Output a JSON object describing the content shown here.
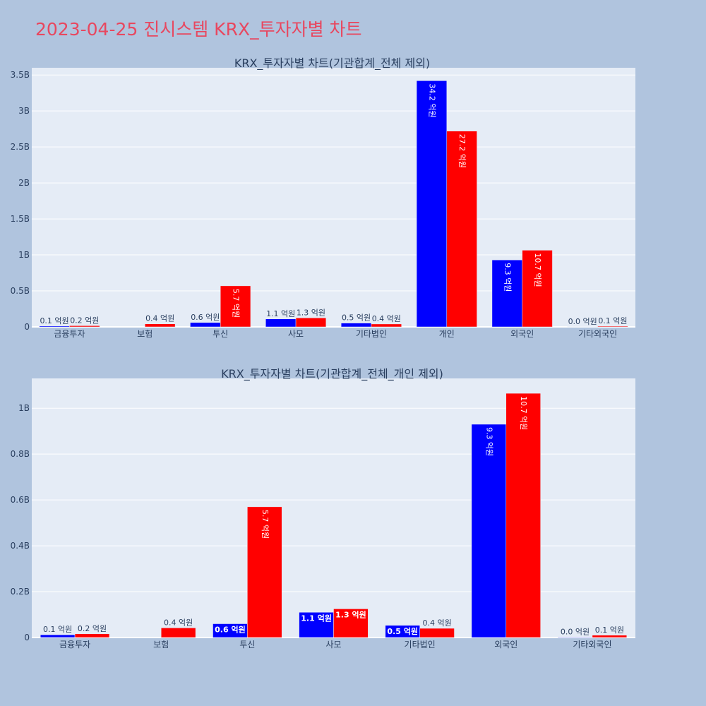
{
  "page": {
    "title": "2023-04-25 진시스템 KRX_투자자별 차트"
  },
  "colors": {
    "background": "#b0c4de",
    "plot_bg": "#e5ecf6",
    "grid": "#ffffff",
    "title": "#e8475f",
    "text": "#2a3f5f",
    "series_a": "#0000ff",
    "series_b": "#ff0000"
  },
  "chart_data": [
    {
      "type": "bar",
      "title": "KRX_투자자별 차트(기관합계_전체 제외)",
      "categories": [
        "금융투자",
        "보험",
        "투신",
        "사모",
        "기타법인",
        "개인",
        "외국인",
        "기타외국인"
      ],
      "series": [
        {
          "color": "#0000ff",
          "values": [
            12000000,
            0,
            60000000,
            110000000,
            53000000,
            3420000000,
            930000000,
            2000000
          ],
          "labels": [
            "0.1 억원",
            "",
            "0.6 억원",
            "1.1 억원",
            "0.5 억원",
            "34.2 억원",
            "9.3 억원",
            "0.0 억원"
          ]
        },
        {
          "color": "#ff0000",
          "values": [
            16000000,
            42000000,
            570000000,
            125000000,
            40000000,
            2720000000,
            1065000000,
            10000000
          ],
          "labels": [
            "0.2 억원",
            "0.4 억원",
            "5.7 억원",
            "1.3 억원",
            "0.4 억원",
            "27.2 억원",
            "10.7 억원",
            "0.1 억원"
          ]
        }
      ],
      "ylim": [
        0,
        3600000000
      ],
      "yticks": [
        {
          "value": 0,
          "label": "0"
        },
        {
          "value": 500000000,
          "label": "0.5B"
        },
        {
          "value": 1000000000,
          "label": "1B"
        },
        {
          "value": 1500000000,
          "label": "1.5B"
        },
        {
          "value": 2000000000,
          "label": "2B"
        },
        {
          "value": 2500000000,
          "label": "2.5B"
        },
        {
          "value": 3000000000,
          "label": "3B"
        },
        {
          "value": 3500000000,
          "label": "3.5B"
        }
      ],
      "grid": true,
      "legend": "none"
    },
    {
      "type": "bar",
      "title": "KRX_투자자별 차트(기관합계_전체_개인 제외)",
      "categories": [
        "금융투자",
        "보험",
        "투신",
        "사모",
        "기타법인",
        "외국인",
        "기타외국인"
      ],
      "series": [
        {
          "color": "#0000ff",
          "values": [
            12000000,
            0,
            60000000,
            110000000,
            53000000,
            930000000,
            2000000
          ],
          "labels": [
            "0.1 억원",
            "",
            "0.6 억원",
            "1.1 억원",
            "0.5 억원",
            "9.3 억원",
            "0.0 억원"
          ]
        },
        {
          "color": "#ff0000",
          "values": [
            16000000,
            42000000,
            570000000,
            125000000,
            40000000,
            1065000000,
            10000000
          ],
          "labels": [
            "0.2 억원",
            "0.4 억원",
            "5.7 억원",
            "1.3 억원",
            "0.4 억원",
            "10.7 억원",
            "0.1 억원"
          ]
        }
      ],
      "ylim": [
        0,
        1130000000
      ],
      "yticks": [
        {
          "value": 0,
          "label": "0"
        },
        {
          "value": 200000000,
          "label": "0.2B"
        },
        {
          "value": 400000000,
          "label": "0.4B"
        },
        {
          "value": 600000000,
          "label": "0.6B"
        },
        {
          "value": 800000000,
          "label": "0.8B"
        },
        {
          "value": 1000000000,
          "label": "1B"
        }
      ],
      "grid": true,
      "legend": "none"
    }
  ]
}
